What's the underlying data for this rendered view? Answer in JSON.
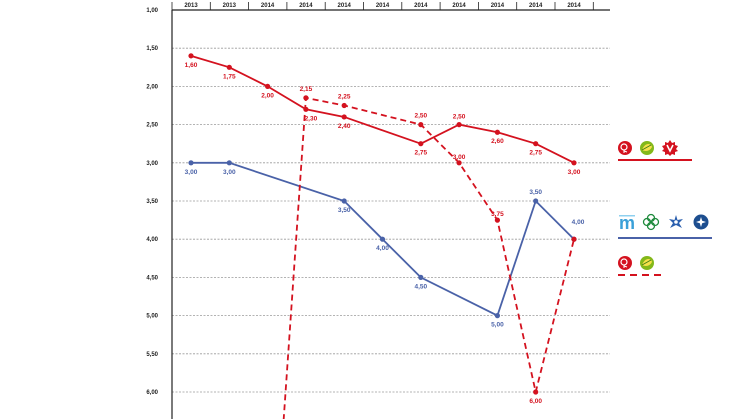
{
  "chart_data": {
    "type": "line",
    "title": "",
    "xlabel": "",
    "ylabel": "",
    "y_inverted": true,
    "ylim": [
      1.0,
      6.5
    ],
    "yticks": [
      "1,00",
      "1,50",
      "2,00",
      "2,50",
      "3,00",
      "3,50",
      "4,00",
      "4,50",
      "5,00",
      "5,50",
      "6,00"
    ],
    "ytick_values": [
      1.0,
      1.5,
      2.0,
      2.5,
      3.0,
      3.5,
      4.0,
      4.5,
      5.0,
      5.5,
      6.0
    ],
    "x_labels": [
      "2013",
      "2013",
      "2014",
      "2014",
      "2014",
      "2014",
      "2014",
      "2014",
      "2014",
      "2014",
      "2014"
    ],
    "grid": true,
    "series": [
      {
        "key": "red_solid",
        "color": "#d4121f",
        "style": "solid",
        "points": [
          {
            "x": 0,
            "y": 1.6,
            "label": "1,60"
          },
          {
            "x": 1,
            "y": 1.75,
            "label": "1,75"
          },
          {
            "x": 2,
            "y": 2.0,
            "label": "2,00"
          },
          {
            "x": 3,
            "y": 2.3,
            "label": "2,30"
          },
          {
            "x": 4,
            "y": 2.4,
            "label": "2,40"
          },
          {
            "x": 6,
            "y": 2.75,
            "label": "2,75"
          },
          {
            "x": 7,
            "y": 2.5,
            "label": "2,50"
          },
          {
            "x": 8,
            "y": 2.6,
            "label": "2,60"
          },
          {
            "x": 9,
            "y": 2.75,
            "label": "2,75"
          },
          {
            "x": 10,
            "y": 3.0,
            "label": "3,00"
          }
        ]
      },
      {
        "key": "blue_solid",
        "color": "#4a62a8",
        "style": "solid",
        "points": [
          {
            "x": 0,
            "y": 3.0,
            "label": "3,00"
          },
          {
            "x": 1,
            "y": 3.0,
            "label": "3,00"
          },
          {
            "x": 4,
            "y": 3.5,
            "label": "3,50"
          },
          {
            "x": 5,
            "y": 4.0,
            "label": "4,00"
          },
          {
            "x": 6,
            "y": 4.5,
            "label": "4,50"
          },
          {
            "x": 8,
            "y": 5.0,
            "label": "5,00"
          },
          {
            "x": 9,
            "y": 3.5,
            "label": "3,50"
          },
          {
            "x": 10,
            "y": 4.0,
            "label": "4,00"
          }
        ]
      },
      {
        "key": "red_dashed",
        "color": "#d4121f",
        "style": "dashed",
        "points": [
          {
            "x": 2.4,
            "y": 6.5,
            "label": ""
          },
          {
            "x": 3,
            "y": 2.15,
            "label": "2,15"
          },
          {
            "x": 4,
            "y": 2.25,
            "label": "2,25"
          },
          {
            "x": 6,
            "y": 2.5,
            "label": "2,50"
          },
          {
            "x": 7,
            "y": 3.0,
            "label": "3,00"
          },
          {
            "x": 8,
            "y": 3.75,
            "label": "3,75"
          },
          {
            "x": 9,
            "y": 6.0,
            "label": "6,00"
          },
          {
            "x": 10,
            "y": 4.0,
            "label": ""
          }
        ]
      }
    ],
    "legend": {
      "placement": "right",
      "groups": [
        {
          "key": "red_solid",
          "icons": [
            "rose-icon",
            "leaf-icon",
            "v-icon"
          ],
          "line_style": "solid",
          "color": "#d4121f"
        },
        {
          "key": "blue_solid",
          "icons": [
            "m-icon",
            "clover-icon",
            "cornflower-icon",
            "star-flower-icon"
          ],
          "line_style": "solid",
          "color": "#4a62a8"
        },
        {
          "key": "red_dashed",
          "icons": [
            "rose-icon",
            "leaf-icon"
          ],
          "line_style": "dashed",
          "color": "#d4121f"
        }
      ]
    }
  }
}
